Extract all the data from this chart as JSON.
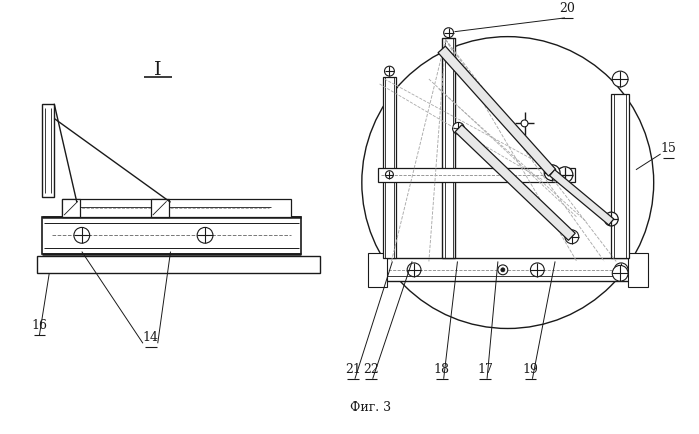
{
  "bg": "#ffffff",
  "lc": "#1a1a1a",
  "fig_caption": "Фиг. 3"
}
